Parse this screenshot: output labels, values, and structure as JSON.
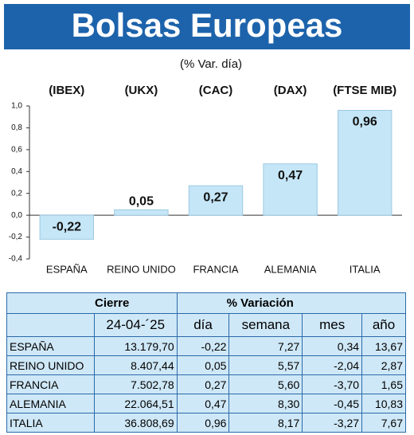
{
  "chart_data": {
    "type": "bar",
    "title": "Bolsas Europeas",
    "subtitle": "(% Var. día)",
    "index_labels": [
      "(IBEX)",
      "(UKX)",
      "(CAC)",
      "(DAX)",
      "(FTSE MIB)"
    ],
    "categories": [
      "ESPAÑA",
      "REINO UNIDO",
      "FRANCIA",
      "ALEMANIA",
      "ITALIA"
    ],
    "values": [
      -0.22,
      0.05,
      0.27,
      0.47,
      0.96
    ],
    "value_labels": [
      "-0,22",
      "0,05",
      "0,27",
      "0,47",
      "0,96"
    ],
    "color": "#c5e6f7",
    "ylim": [
      -0.4,
      1.0
    ],
    "yticks": [
      {
        "value": 1.0,
        "label": "1,0"
      },
      {
        "value": 0.8,
        "label": "0,8"
      },
      {
        "value": 0.6,
        "label": "0,6"
      },
      {
        "value": 0.4,
        "label": "0,4"
      },
      {
        "value": 0.2,
        "label": "0,2"
      },
      {
        "value": 0.0,
        "label": "0,0"
      },
      {
        "value": -0.2,
        "label": "-0,2"
      },
      {
        "value": -0.4,
        "label": "-0,4"
      }
    ]
  },
  "table": {
    "group_headers": [
      "Cierre",
      "% Variación"
    ],
    "date": "24-04-´25",
    "columns": [
      "día",
      "semana",
      "mes",
      "año"
    ],
    "rows": [
      [
        "ESPAÑA",
        "13.179,70",
        "-0,22",
        "7,27",
        "0,34",
        "13,67"
      ],
      [
        "REINO UNIDO",
        "8.407,44",
        "0,05",
        "5,57",
        "-2,04",
        "2,87"
      ],
      [
        "FRANCIA",
        "7.502,78",
        "0,27",
        "5,60",
        "-3,70",
        "1,65"
      ],
      [
        "ALEMANIA",
        "22.064,51",
        "0,47",
        "8,30",
        "-0,45",
        "10,83"
      ],
      [
        "ITALIA",
        "36.808,69",
        "0,96",
        "8,17",
        "-3,27",
        "7,67"
      ]
    ]
  }
}
